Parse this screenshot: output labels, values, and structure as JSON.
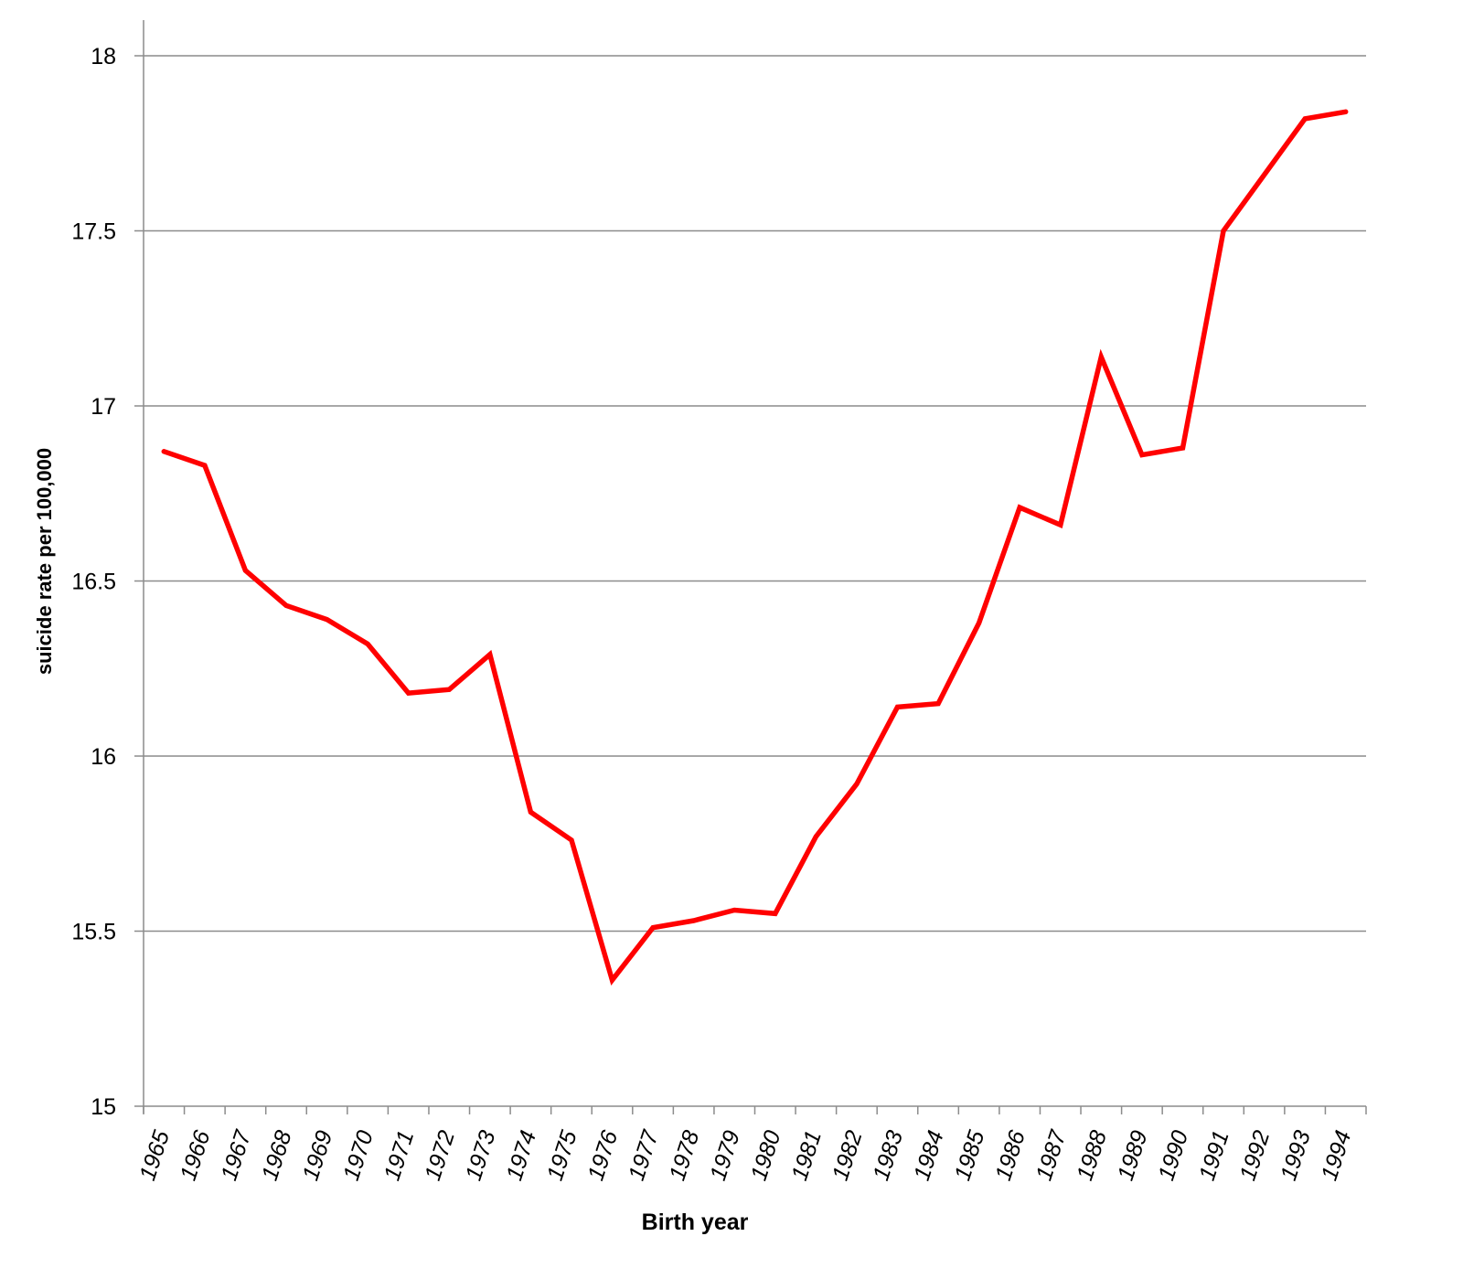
{
  "chart_data": {
    "type": "line",
    "xlabel": "Birth year",
    "ylabel": "suicide rate per 100,000",
    "ylim": [
      15,
      18
    ],
    "yticks": [
      15,
      15.5,
      16,
      16.5,
      17,
      17.5,
      18
    ],
    "ytick_labels": [
      "15",
      "15.5",
      "16",
      "16.5",
      "17",
      "17.5",
      "18"
    ],
    "grid": "horizontal",
    "legend": "none",
    "categories": [
      "1965",
      "1966",
      "1967",
      "1968",
      "1969",
      "1970",
      "1971",
      "1972",
      "1973",
      "1974",
      "1975",
      "1976",
      "1977",
      "1978",
      "1979",
      "1980",
      "1981",
      "1982",
      "1983",
      "1984",
      "1985",
      "1986",
      "1987",
      "1988",
      "1989",
      "1990",
      "1991",
      "1992",
      "1993",
      "1994"
    ],
    "series": [
      {
        "color": "#ff0000",
        "values": [
          16.87,
          16.83,
          16.53,
          16.43,
          16.39,
          16.32,
          16.18,
          16.19,
          16.29,
          15.84,
          15.76,
          15.36,
          15.51,
          15.53,
          15.56,
          15.55,
          15.77,
          15.92,
          16.14,
          16.15,
          16.38,
          16.71,
          16.66,
          17.14,
          16.86,
          16.88,
          17.5,
          17.66,
          17.82,
          17.84
        ]
      }
    ],
    "colors": {
      "line": "#ff0000",
      "grid": "#8c8c8c",
      "axis": "#8c8c8c",
      "text": "#000000"
    }
  }
}
